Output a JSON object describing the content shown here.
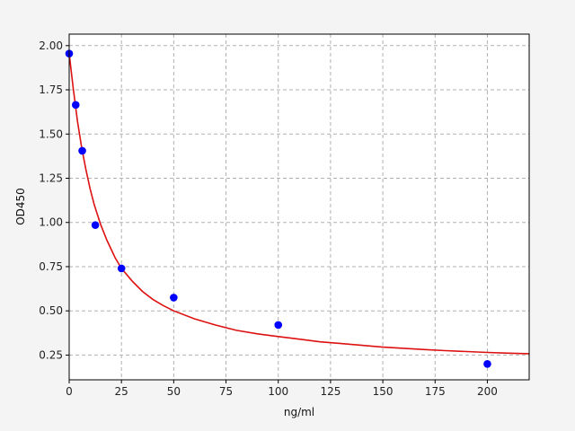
{
  "chart_data": {
    "type": "scatter",
    "title": "",
    "xlabel": "ng/ml",
    "ylabel": "OD450",
    "xlim": [
      0,
      220
    ],
    "ylim": [
      0.11,
      2.065
    ],
    "grid": true,
    "legend": "none",
    "xticks": [
      0,
      25,
      50,
      75,
      100,
      125,
      150,
      175,
      200
    ],
    "yticks": [
      0.25,
      0.5,
      0.75,
      1.0,
      1.25,
      1.5,
      1.75,
      2.0
    ],
    "xtick_labels": [
      "0",
      "25",
      "50",
      "75",
      "100",
      "125",
      "150",
      "175",
      "200"
    ],
    "ytick_labels": [
      "0.25",
      "0.50",
      "0.75",
      "1.00",
      "1.25",
      "1.50",
      "1.75",
      "2.00"
    ],
    "series": [
      {
        "kind": "points",
        "color": "#0000ff",
        "x": [
          0,
          3.125,
          6.25,
          12.5,
          25,
          50,
          100,
          200
        ],
        "y": [
          1.955,
          1.665,
          1.405,
          0.985,
          0.74,
          0.575,
          0.42,
          0.2
        ]
      },
      {
        "kind": "fit-curve",
        "color": "#dd1111",
        "x": [
          0,
          2,
          4,
          6,
          8,
          10,
          12,
          15,
          18,
          22,
          25,
          30,
          35,
          40,
          45,
          50,
          60,
          70,
          80,
          90,
          100,
          110,
          120,
          130,
          140,
          150,
          160,
          170,
          180,
          190,
          200,
          210,
          220
        ],
        "y": [
          1.955,
          1.75,
          1.57,
          1.42,
          1.3,
          1.19,
          1.1,
          0.99,
          0.9,
          0.8,
          0.74,
          0.67,
          0.61,
          0.565,
          0.53,
          0.5,
          0.455,
          0.42,
          0.39,
          0.37,
          0.355,
          0.34,
          0.325,
          0.315,
          0.305,
          0.295,
          0.288,
          0.281,
          0.275,
          0.27,
          0.265,
          0.261,
          0.258
        ]
      }
    ]
  }
}
